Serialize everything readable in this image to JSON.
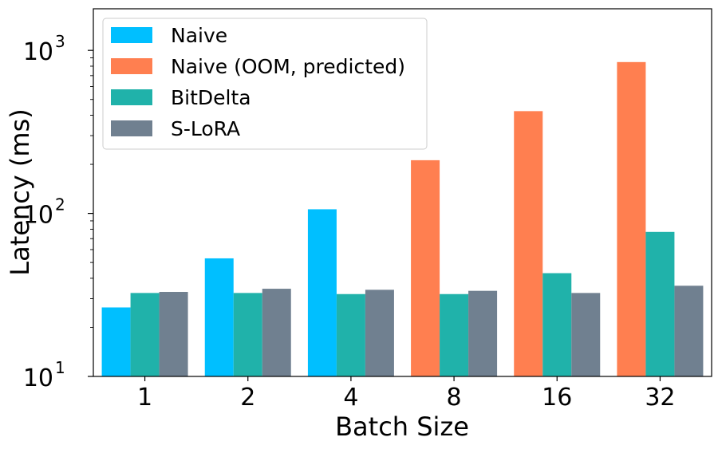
{
  "chart_data": {
    "type": "bar",
    "y_scale": "log",
    "ylim": [
      10,
      1800
    ],
    "xlabel": "Batch Size",
    "ylabel": "Latency (ms)",
    "categories": [
      "1",
      "2",
      "4",
      "8",
      "16",
      "32"
    ],
    "y_ticks": [
      {
        "value": 10,
        "base": "10",
        "exp": "1"
      },
      {
        "value": 100,
        "base": "10",
        "exp": "2"
      },
      {
        "value": 1000,
        "base": "10",
        "exp": "3"
      }
    ],
    "series": [
      {
        "name": "Naive",
        "color": "#00bfff",
        "values": [
          26.5,
          53,
          106,
          null,
          null,
          null
        ]
      },
      {
        "name": "Naive (OOM, predicted)",
        "color": "#ff7f50",
        "values": [
          null,
          null,
          null,
          212,
          424,
          848
        ]
      },
      {
        "name": "BitDelta",
        "color": "#20b2aa",
        "values": [
          32.5,
          32.5,
          32,
          32,
          43,
          77
        ]
      },
      {
        "name": "S-LoRA",
        "color": "#708090",
        "values": [
          33,
          34.5,
          34,
          33.5,
          32.5,
          36
        ]
      }
    ],
    "legend": {
      "position": "upper-left"
    },
    "grid": false
  }
}
